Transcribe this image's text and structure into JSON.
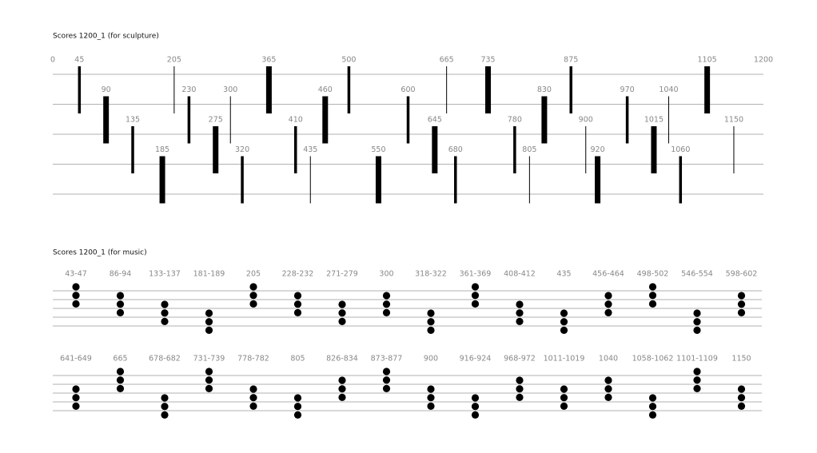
{
  "sculpture": {
    "title": "Scores 1200_1 (for sculpture)",
    "xlim": [
      0,
      1200
    ],
    "marks": [
      {
        "value": 45,
        "level": 1,
        "weight": "medium"
      },
      {
        "value": 90,
        "level": 2,
        "weight": "thick"
      },
      {
        "value": 135,
        "level": 3,
        "weight": "medium"
      },
      {
        "value": 185,
        "level": 4,
        "weight": "thick"
      },
      {
        "value": 205,
        "level": 1,
        "weight": "thin"
      },
      {
        "value": 230,
        "level": 2,
        "weight": "medium"
      },
      {
        "value": 275,
        "level": 3,
        "weight": "thick"
      },
      {
        "value": 300,
        "level": 2,
        "weight": "thin"
      },
      {
        "value": 320,
        "level": 4,
        "weight": "medium"
      },
      {
        "value": 365,
        "level": 1,
        "weight": "thick"
      },
      {
        "value": 410,
        "level": 3,
        "weight": "medium"
      },
      {
        "value": 435,
        "level": 4,
        "weight": "thin"
      },
      {
        "value": 460,
        "level": 2,
        "weight": "thick"
      },
      {
        "value": 500,
        "level": 1,
        "weight": "medium"
      },
      {
        "value": 550,
        "level": 4,
        "weight": "thick"
      },
      {
        "value": 600,
        "level": 2,
        "weight": "medium"
      },
      {
        "value": 645,
        "level": 3,
        "weight": "thick"
      },
      {
        "value": 665,
        "level": 1,
        "weight": "thin"
      },
      {
        "value": 680,
        "level": 4,
        "weight": "medium"
      },
      {
        "value": 735,
        "level": 1,
        "weight": "thick"
      },
      {
        "value": 780,
        "level": 3,
        "weight": "medium"
      },
      {
        "value": 805,
        "level": 4,
        "weight": "thin"
      },
      {
        "value": 830,
        "level": 2,
        "weight": "thick"
      },
      {
        "value": 875,
        "level": 1,
        "weight": "medium"
      },
      {
        "value": 900,
        "level": 3,
        "weight": "thin"
      },
      {
        "value": 920,
        "level": 4,
        "weight": "thick"
      },
      {
        "value": 970,
        "level": 2,
        "weight": "medium"
      },
      {
        "value": 1015,
        "level": 3,
        "weight": "thick"
      },
      {
        "value": 1040,
        "level": 2,
        "weight": "thin"
      },
      {
        "value": 1060,
        "level": 4,
        "weight": "medium"
      },
      {
        "value": 1105,
        "level": 1,
        "weight": "thick"
      },
      {
        "value": 1150,
        "level": 3,
        "weight": "thin"
      }
    ]
  },
  "music": {
    "title": "Scores 1200_1 (for music)",
    "chords": [
      {
        "label": "43-47",
        "level": 1
      },
      {
        "label": "86-94",
        "level": 2
      },
      {
        "label": "133-137",
        "level": 3
      },
      {
        "label": "181-189",
        "level": 4
      },
      {
        "label": "205",
        "level": 1
      },
      {
        "label": "228-232",
        "level": 2
      },
      {
        "label": "271-279",
        "level": 3
      },
      {
        "label": "300",
        "level": 2
      },
      {
        "label": "318-322",
        "level": 4
      },
      {
        "label": "361-369",
        "level": 1
      },
      {
        "label": "408-412",
        "level": 3
      },
      {
        "label": "435",
        "level": 4
      },
      {
        "label": "456-464",
        "level": 2
      },
      {
        "label": "498-502",
        "level": 1
      },
      {
        "label": "546-554",
        "level": 4
      },
      {
        "label": "598-602",
        "level": 2
      },
      {
        "label": "641-649",
        "level": 3
      },
      {
        "label": "665",
        "level": 1
      },
      {
        "label": "678-682",
        "level": 4
      },
      {
        "label": "731-739",
        "level": 1
      },
      {
        "label": "778-782",
        "level": 3
      },
      {
        "label": "805",
        "level": 4
      },
      {
        "label": "826-834",
        "level": 2
      },
      {
        "label": "873-877",
        "level": 1
      },
      {
        "label": "900",
        "level": 3
      },
      {
        "label": "916-924",
        "level": 4
      },
      {
        "label": "968-972",
        "level": 2
      },
      {
        "label": "1011-1019",
        "level": 3
      },
      {
        "label": "1040",
        "level": 2
      },
      {
        "label": "1058-1062",
        "level": 4
      },
      {
        "label": "1101-1109",
        "level": 1
      },
      {
        "label": "1150",
        "level": 3
      }
    ]
  }
}
